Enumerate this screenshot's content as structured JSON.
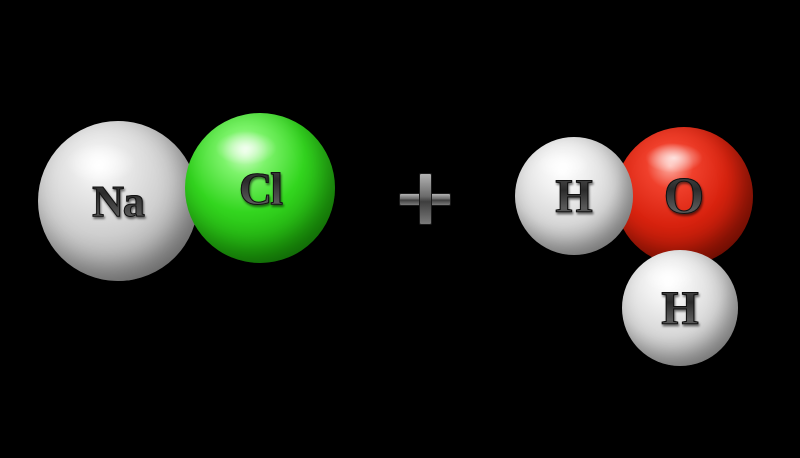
{
  "scene": {
    "background_color": "#000000",
    "reactant_1": {
      "name": "sodium-chloride",
      "atoms": [
        {
          "symbol": "Na",
          "color": "#c8c8c8"
        },
        {
          "symbol": "Cl",
          "color": "#2fd31a"
        }
      ]
    },
    "operator": {
      "symbol": "+",
      "color": "#6a6a6a"
    },
    "reactant_2": {
      "name": "water",
      "atoms": [
        {
          "symbol": "H",
          "color": "#dcdcdc"
        },
        {
          "symbol": "O",
          "color": "#e0260f"
        },
        {
          "symbol": "H",
          "color": "#dcdcdc"
        }
      ]
    }
  }
}
